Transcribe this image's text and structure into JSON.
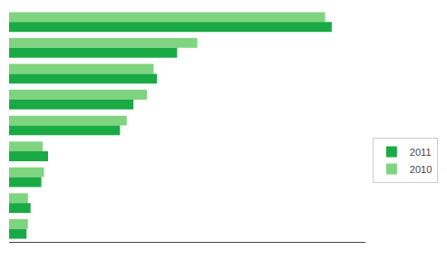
{
  "chart_data": {
    "type": "bar",
    "orientation": "horizontal",
    "categories": [
      null,
      null,
      null,
      null,
      null,
      null,
      null,
      null,
      null
    ],
    "series": [
      {
        "name": "2011",
        "color": "#1aaa45",
        "values": [
          480,
          250,
          220,
          185,
          165,
          58,
          48,
          32,
          26
        ]
      },
      {
        "name": "2010",
        "color": "#7fd47f",
        "values": [
          470,
          280,
          215,
          205,
          175,
          50,
          52,
          28,
          28
        ]
      }
    ],
    "xlim": [
      0,
      530
    ],
    "xticks": [],
    "grid": false,
    "legend": "right",
    "tick_labels": false
  }
}
